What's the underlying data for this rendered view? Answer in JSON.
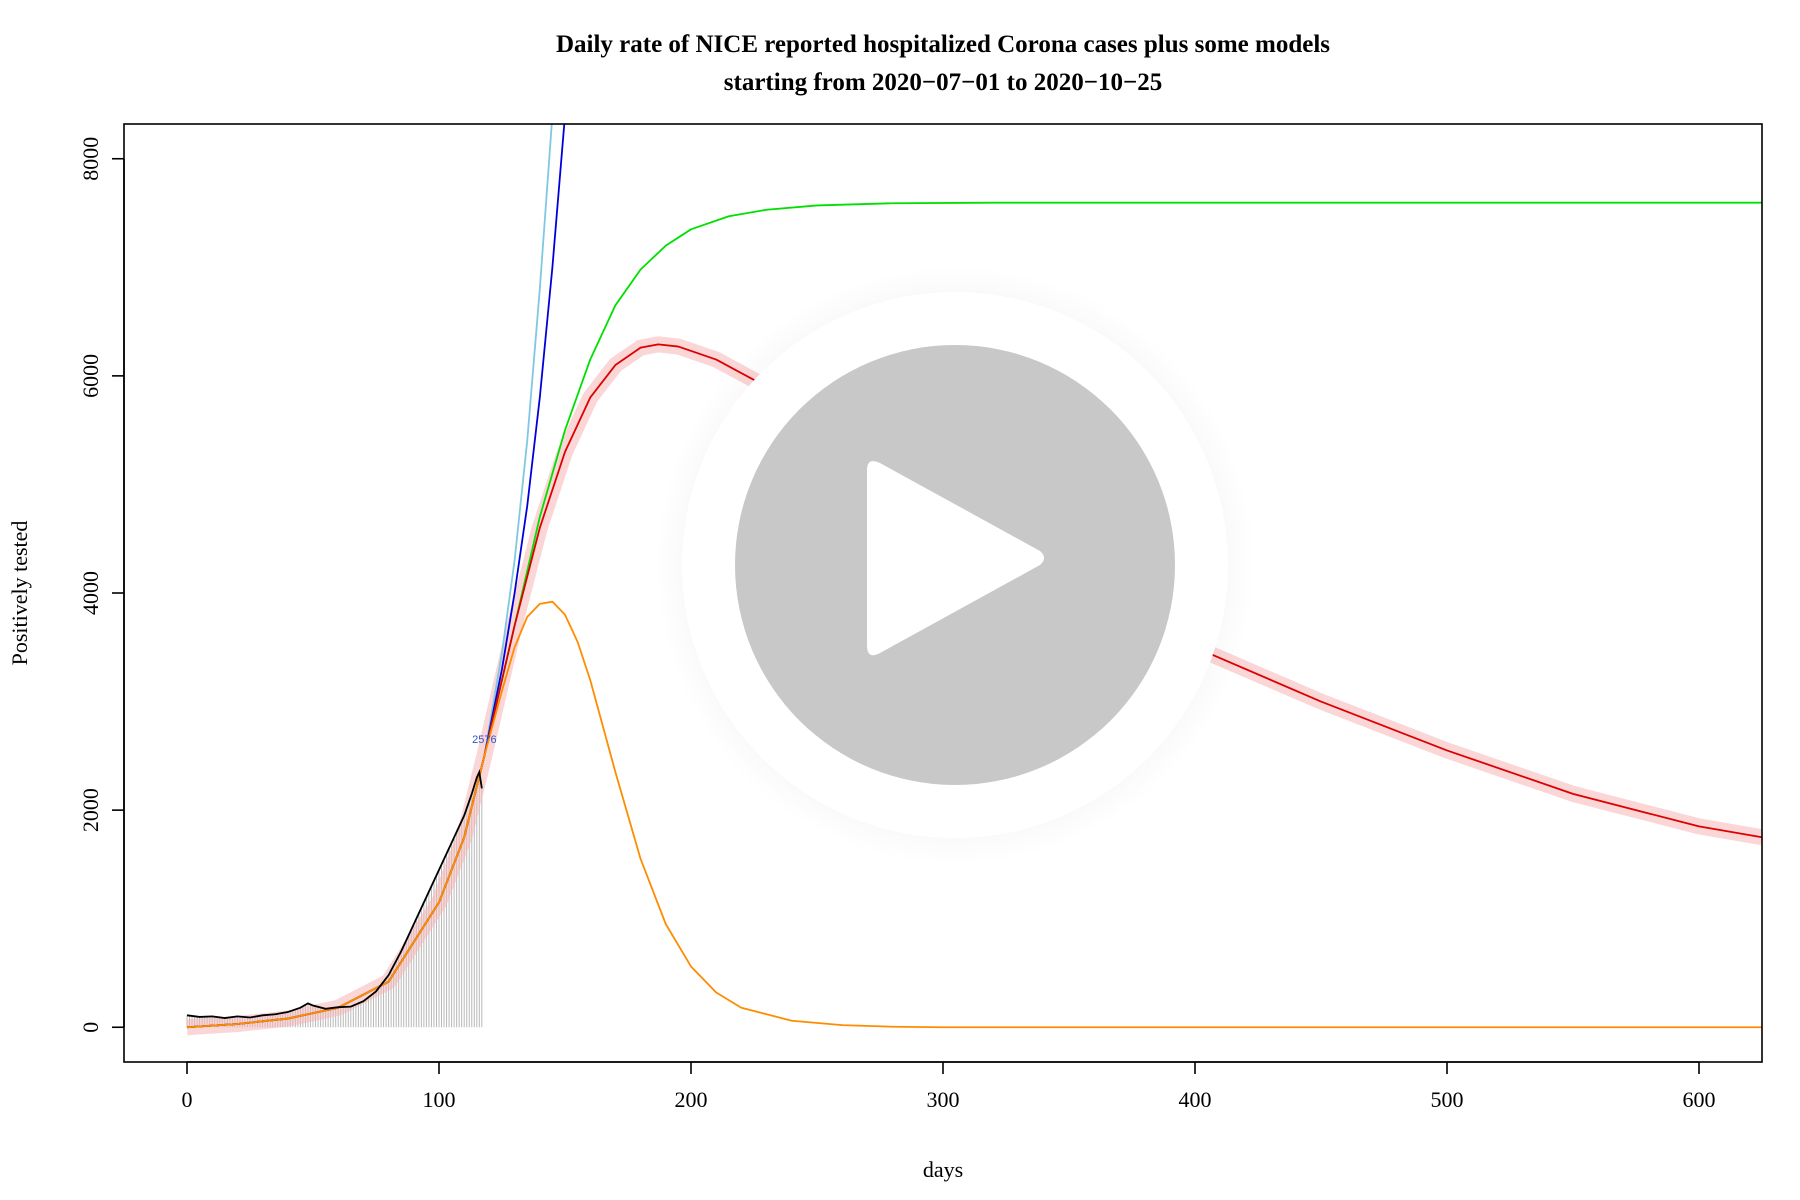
{
  "chart_data": {
    "type": "line",
    "title": "Daily rate of NICE reported hospitalized Corona cases plus some models",
    "subtitle": "starting from  2020−07−01  to  2020−10−25",
    "xlabel": "days",
    "ylabel": "Positively tested",
    "xlim": [
      -25,
      625
    ],
    "ylim": [
      -320,
      8320
    ],
    "x_ticks": [
      0,
      100,
      200,
      300,
      400,
      500,
      600
    ],
    "y_ticks": [
      0,
      2000,
      4000,
      6000,
      8000
    ],
    "grid": false,
    "legend": "none",
    "observed": {
      "name": "",
      "color": "#000000",
      "x": [
        0,
        5,
        10,
        15,
        20,
        25,
        30,
        35,
        40,
        45,
        48,
        50,
        55,
        60,
        65,
        70,
        75,
        80,
        85,
        90,
        95,
        100,
        105,
        110,
        113,
        115,
        116,
        117
      ],
      "y": [
        110,
        95,
        100,
        85,
        100,
        90,
        110,
        120,
        140,
        180,
        220,
        200,
        170,
        185,
        190,
        240,
        330,
        480,
        700,
        950,
        1200,
        1450,
        1700,
        1950,
        2150,
        2300,
        2350,
        2200
      ]
    },
    "series": [
      {
        "name": "",
        "color": "#7ec8e3",
        "x": [
          0,
          20,
          40,
          60,
          80,
          100,
          110,
          118,
          125,
          130,
          135,
          140,
          145
        ],
        "y": [
          0,
          30,
          80,
          180,
          420,
          1150,
          1750,
          2500,
          3450,
          4300,
          5400,
          6800,
          8400
        ]
      },
      {
        "name": "",
        "color": "#0000dd",
        "x": [
          0,
          20,
          40,
          60,
          80,
          100,
          110,
          118,
          125,
          130,
          135,
          140,
          145,
          150
        ],
        "y": [
          0,
          30,
          80,
          180,
          420,
          1150,
          1750,
          2500,
          3300,
          4000,
          4800,
          5800,
          7000,
          8400
        ]
      },
      {
        "name": "",
        "color": "#00e000",
        "x": [
          0,
          20,
          40,
          60,
          80,
          100,
          110,
          118,
          130,
          140,
          150,
          160,
          170,
          180,
          190,
          200,
          215,
          230,
          250,
          280,
          320,
          400,
          500,
          625
        ],
        "y": [
          0,
          30,
          80,
          180,
          420,
          1150,
          1750,
          2500,
          3700,
          4700,
          5500,
          6150,
          6650,
          6980,
          7200,
          7350,
          7470,
          7530,
          7570,
          7590,
          7595,
          7595,
          7595,
          7595
        ]
      },
      {
        "name": "",
        "color": "#dd0000",
        "band_color": "#f5b5b5",
        "x": [
          0,
          20,
          40,
          60,
          80,
          100,
          110,
          118,
          130,
          140,
          150,
          160,
          170,
          180,
          187,
          195,
          210,
          230,
          250,
          280,
          300,
          320,
          350,
          400,
          450,
          500,
          550,
          600,
          625
        ],
        "y": [
          0,
          30,
          80,
          180,
          420,
          1150,
          1750,
          2500,
          3700,
          4600,
          5300,
          5800,
          6100,
          6260,
          6290,
          6270,
          6150,
          5900,
          5550,
          5050,
          4750,
          4450,
          4050,
          3500,
          3000,
          2550,
          2150,
          1850,
          1750
        ]
      },
      {
        "name": "",
        "color": "#ff8c00",
        "x": [
          0,
          20,
          40,
          60,
          80,
          100,
          110,
          118,
          125,
          130,
          135,
          140,
          145,
          150,
          155,
          160,
          170,
          180,
          190,
          200,
          210,
          220,
          240,
          260,
          280,
          300,
          350,
          400,
          500,
          625
        ],
        "y": [
          0,
          30,
          80,
          180,
          420,
          1150,
          1750,
          2500,
          3100,
          3500,
          3780,
          3900,
          3920,
          3800,
          3550,
          3200,
          2350,
          1550,
          950,
          560,
          320,
          180,
          60,
          20,
          5,
          0,
          0,
          0,
          0,
          0
        ]
      }
    ],
    "annotation": {
      "text": "2576",
      "x": 118,
      "y": 2580,
      "color": "#3355cc"
    }
  },
  "player": {
    "icon": "play-icon",
    "ring_color": "#ffffff",
    "disc_color": "#c8c8c8"
  }
}
